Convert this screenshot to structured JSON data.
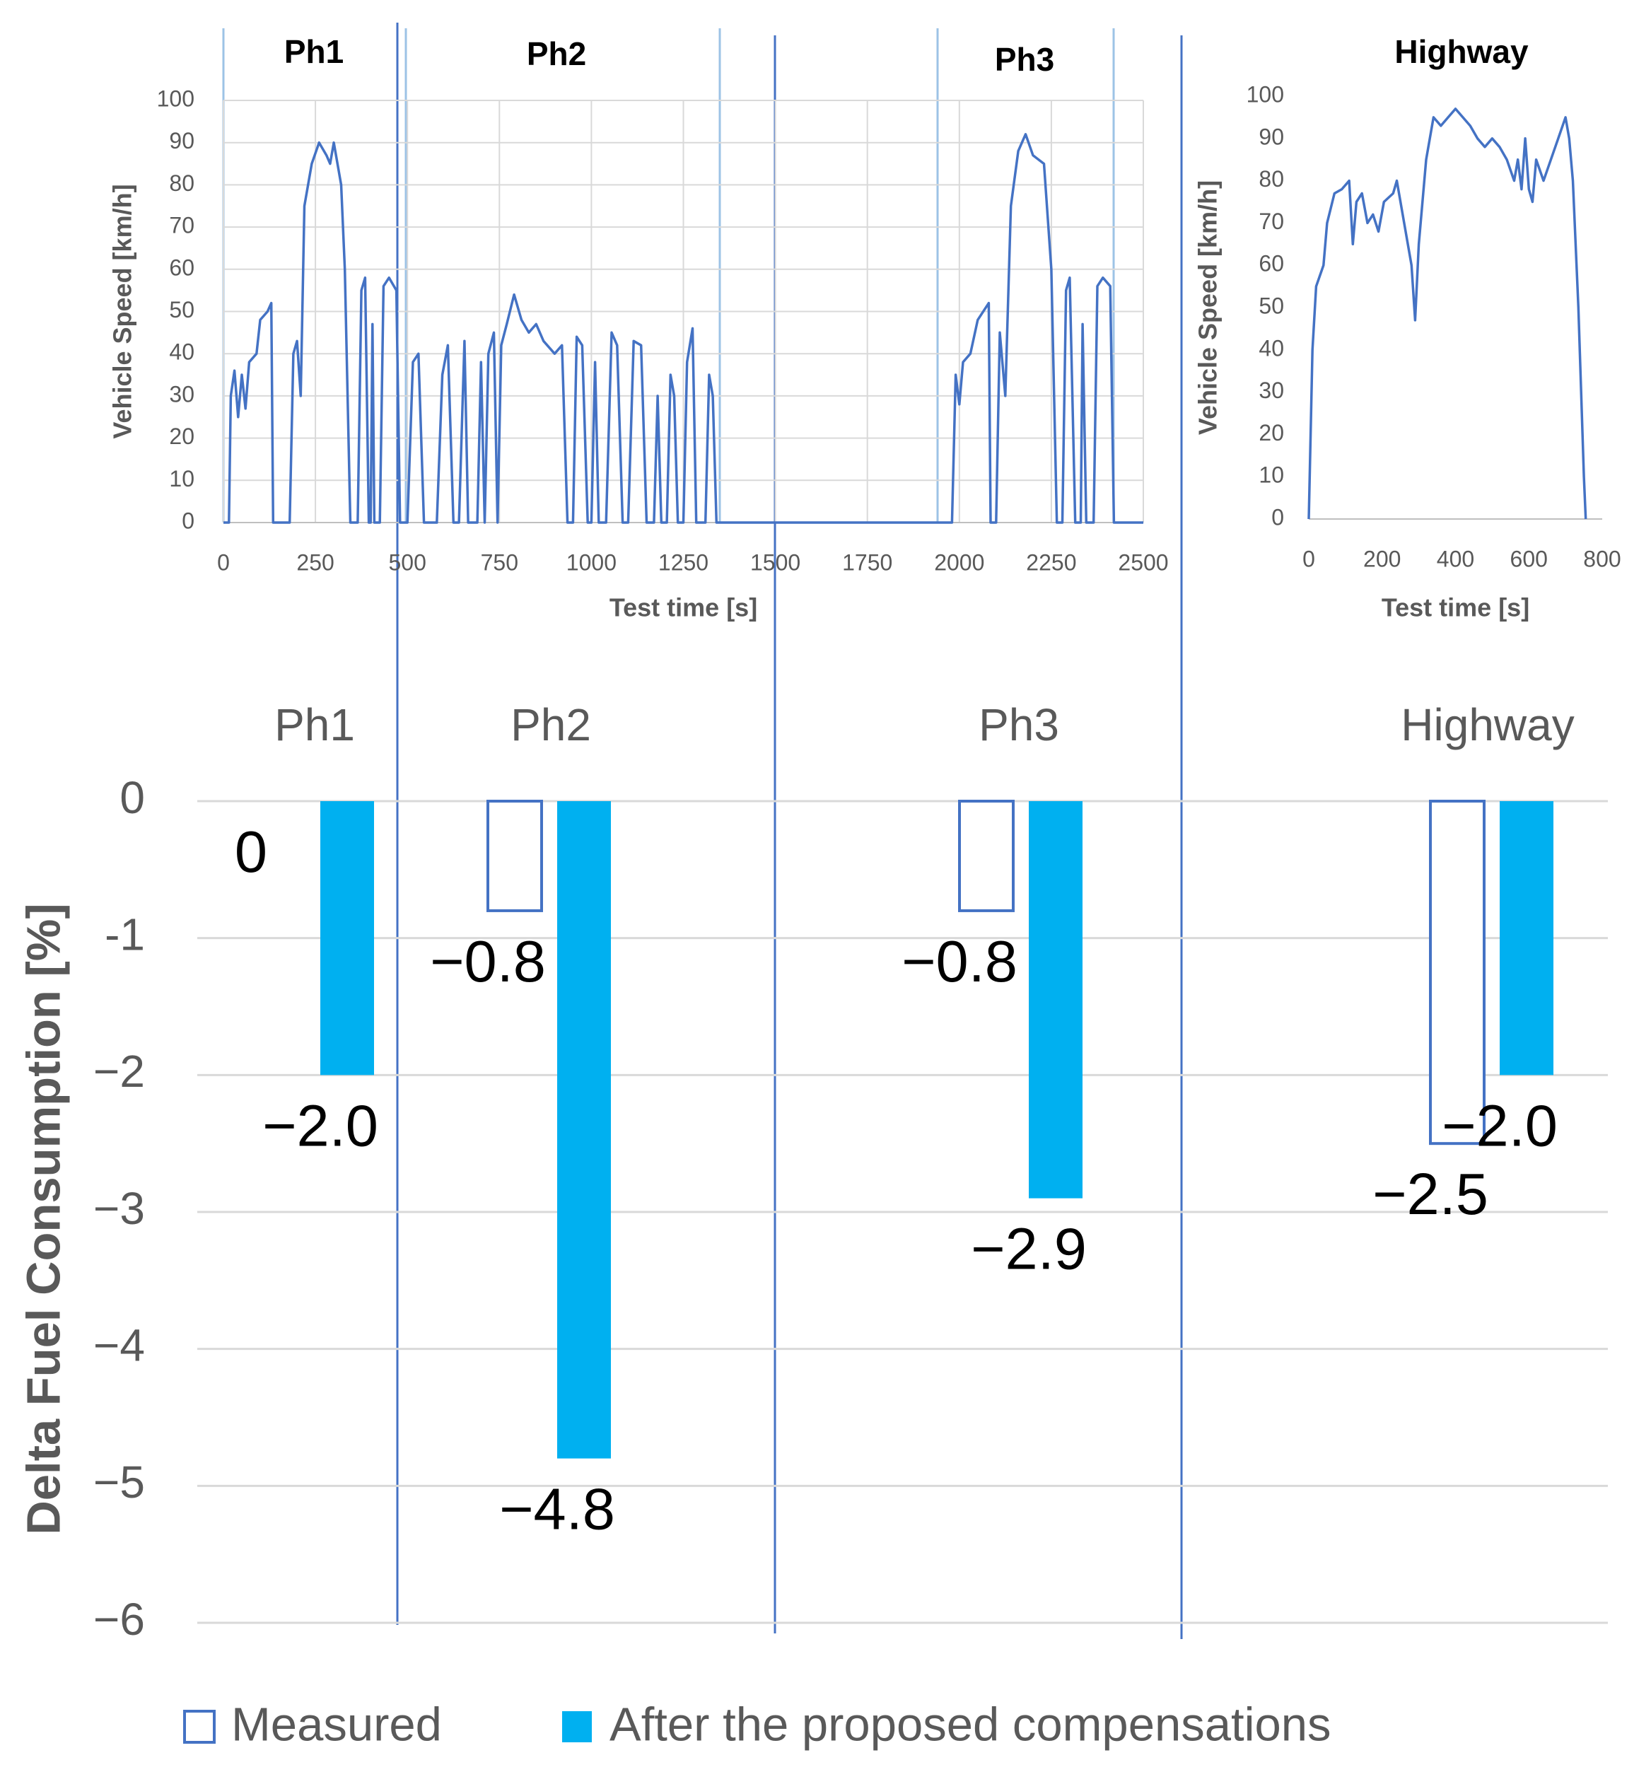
{
  "chart_data": [
    {
      "type": "line",
      "annotations": [
        "Ph1",
        "Ph2",
        "Ph3"
      ],
      "xlabel": "Test time [s]",
      "ylabel": "Vehicle Speed [km/h]",
      "x": [
        0,
        15,
        20,
        30,
        40,
        50,
        60,
        70,
        90,
        100,
        120,
        130,
        135,
        180,
        190,
        200,
        210,
        220,
        240,
        260,
        280,
        290,
        300,
        320,
        330,
        345,
        365,
        375,
        385,
        395,
        400,
        405,
        410,
        425,
        435,
        450,
        470,
        480,
        500,
        515,
        530,
        545,
        580,
        595,
        610,
        625,
        640,
        655,
        665,
        690,
        700,
        710,
        720,
        735,
        745,
        755,
        770,
        790,
        810,
        830,
        850,
        870,
        900,
        920,
        935,
        950,
        960,
        975,
        990,
        1000,
        1010,
        1020,
        1040,
        1055,
        1070,
        1085,
        1100,
        1115,
        1135,
        1150,
        1170,
        1180,
        1190,
        1205,
        1215,
        1225,
        1235,
        1250,
        1260,
        1275,
        1285,
        1310,
        1320,
        1330,
        1340,
        1350,
        1980,
        1990,
        2000,
        2010,
        2030,
        2050,
        2080,
        2085,
        2100,
        2110,
        2125,
        2140,
        2160,
        2180,
        2200,
        2230,
        2250,
        2265,
        2280,
        2290,
        2300,
        2315,
        2330,
        2335,
        2345,
        2365,
        2375,
        2390,
        2410,
        2420,
        2500
      ],
      "series": [
        {
          "name": "Vehicle speed",
          "color": "#4472c4",
          "values": [
            0,
            0,
            30,
            36,
            25,
            35,
            27,
            38,
            40,
            48,
            50,
            52,
            0,
            0,
            40,
            43,
            30,
            75,
            85,
            90,
            87,
            85,
            90,
            80,
            60,
            0,
            0,
            55,
            58,
            0,
            0,
            47,
            0,
            0,
            56,
            58,
            55,
            0,
            0,
            38,
            40,
            0,
            0,
            35,
            42,
            0,
            0,
            43,
            0,
            0,
            38,
            0,
            40,
            45,
            0,
            42,
            47,
            54,
            48,
            45,
            47,
            43,
            40,
            42,
            0,
            0,
            44,
            42,
            0,
            0,
            38,
            0,
            0,
            45,
            42,
            0,
            0,
            43,
            42,
            0,
            0,
            30,
            0,
            0,
            35,
            30,
            0,
            0,
            38,
            46,
            0,
            0,
            35,
            30,
            0,
            0,
            0,
            35,
            28,
            38,
            40,
            48,
            52,
            0,
            0,
            45,
            30,
            75,
            88,
            92,
            87,
            85,
            60,
            0,
            0,
            55,
            58,
            0,
            0,
            47,
            0,
            0,
            56,
            58,
            56,
            0,
            0
          ]
        }
      ],
      "xlim": [
        0,
        2500
      ],
      "xticks": [
        0,
        250,
        500,
        750,
        1000,
        1250,
        1500,
        1750,
        2000,
        2250,
        2500
      ],
      "ylim": [
        0,
        100
      ],
      "yticks": [
        0,
        10,
        20,
        30,
        40,
        50,
        60,
        70,
        80,
        90,
        100
      ],
      "grid": true
    },
    {
      "type": "line",
      "title": "Highway",
      "xlabel": "Test time [s]",
      "ylabel": "Vehicle Speed [km/h]",
      "x": [
        0,
        10,
        20,
        40,
        50,
        70,
        90,
        110,
        120,
        130,
        145,
        160,
        175,
        190,
        205,
        230,
        240,
        260,
        280,
        290,
        300,
        320,
        340,
        360,
        380,
        400,
        420,
        440,
        460,
        480,
        500,
        520,
        540,
        560,
        570,
        580,
        590,
        600,
        610,
        620,
        640,
        660,
        680,
        700,
        710,
        720,
        735,
        750,
        755
      ],
      "series": [
        {
          "name": "Vehicle speed",
          "color": "#4472c4",
          "values": [
            0,
            40,
            55,
            60,
            70,
            77,
            78,
            80,
            65,
            75,
            77,
            70,
            72,
            68,
            75,
            77,
            80,
            70,
            60,
            47,
            65,
            85,
            95,
            93,
            95,
            97,
            95,
            93,
            90,
            88,
            90,
            88,
            85,
            80,
            85,
            78,
            90,
            78,
            75,
            85,
            80,
            85,
            90,
            95,
            90,
            80,
            50,
            10,
            0
          ]
        }
      ],
      "xlim": [
        0,
        800
      ],
      "xticks": [
        0,
        200,
        400,
        600,
        800
      ],
      "ylim": [
        0,
        100
      ],
      "yticks": [
        0,
        10,
        20,
        30,
        40,
        50,
        60,
        70,
        80,
        90,
        100
      ],
      "grid": false
    },
    {
      "type": "bar",
      "ylabel": "Delta Fuel Consumption [%]",
      "categories": [
        "Ph1",
        "Ph2",
        "Ph3",
        "Highway"
      ],
      "series": [
        {
          "name": "Measured",
          "color": "#4472c4",
          "filled": false,
          "values": [
            0,
            -0.8,
            -0.8,
            -2.5
          ],
          "value_labels": [
            "0",
            "−0.8",
            "−0.8",
            "−2.5"
          ]
        },
        {
          "name": "After the proposed compensations",
          "color": "#00b0f0",
          "filled": true,
          "values": [
            -2.0,
            -4.8,
            -2.9,
            -2.0
          ],
          "value_labels": [
            "−2.0",
            "−4.8",
            "−2.9",
            "−2.0"
          ]
        }
      ],
      "ylim": [
        -6,
        0
      ],
      "yticks": [
        {
          "value": -6,
          "label": "−6"
        },
        {
          "value": -5,
          "label": "−5"
        },
        {
          "value": -4,
          "label": "−4"
        },
        {
          "value": -3,
          "label": "−3"
        },
        {
          "value": -2,
          "label": "−2"
        },
        {
          "value": -1,
          "label": "-1"
        },
        0
      ],
      "grid": true
    }
  ]
}
